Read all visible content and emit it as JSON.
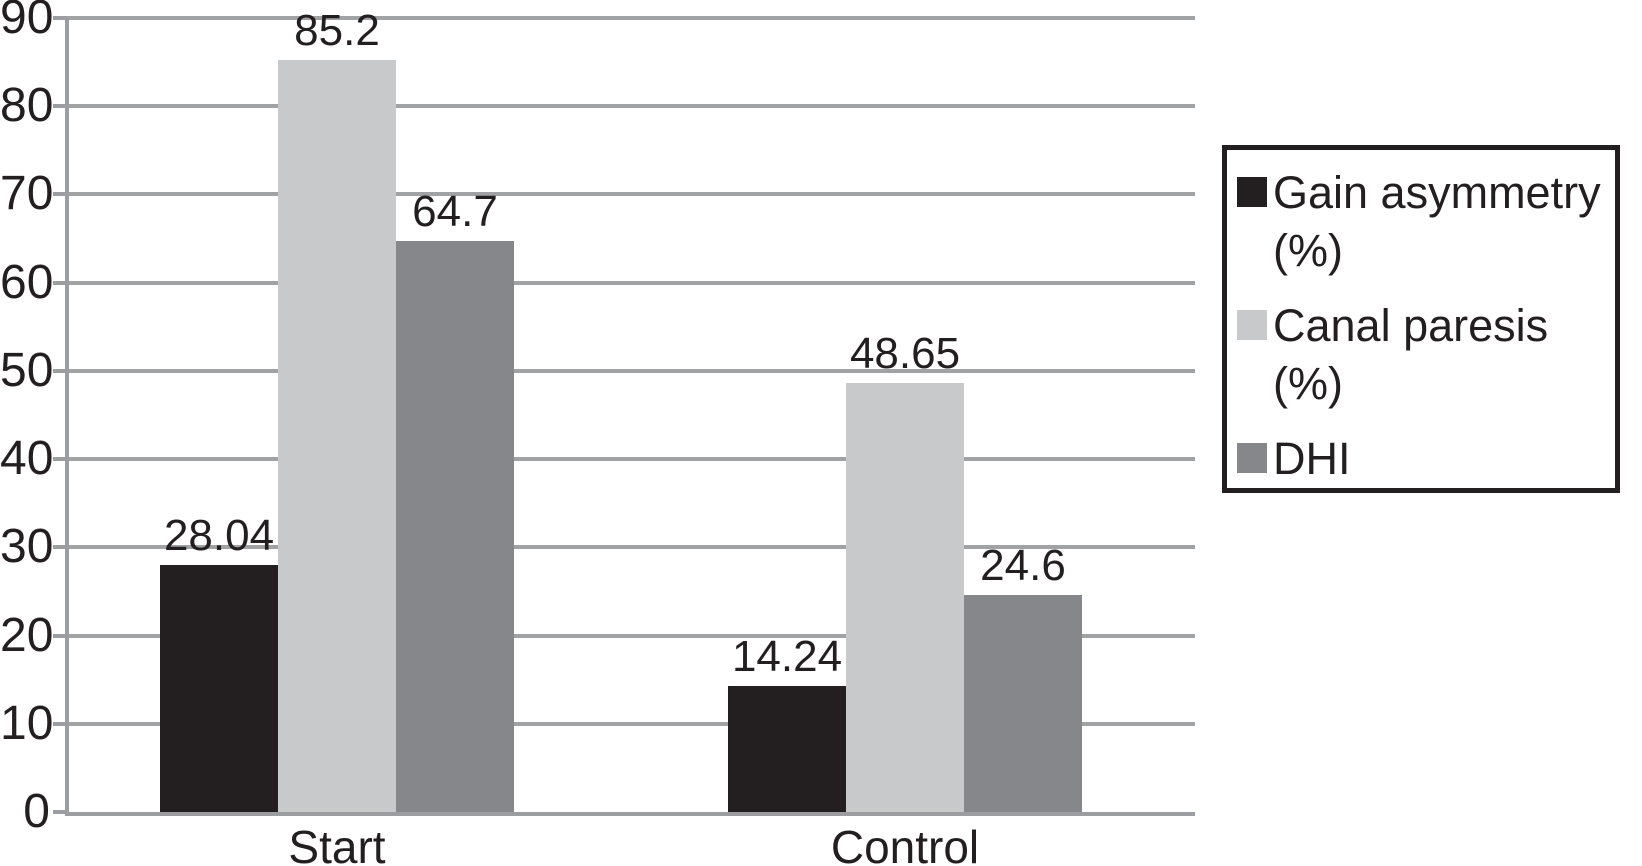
{
  "chart_data": {
    "type": "bar",
    "title": "",
    "xlabel": "",
    "ylabel": "",
    "categories": [
      "Start",
      "Control"
    ],
    "series": [
      {
        "name": "Gain asymmetry (%)",
        "color": "#231f20",
        "values": [
          28.04,
          14.24
        ]
      },
      {
        "name": "Canal paresis (%)",
        "color": "#c8c9cb",
        "values": [
          85.2,
          48.65
        ]
      },
      {
        "name": "DHI",
        "color": "#86878b",
        "values": [
          64.7,
          24.6
        ]
      }
    ],
    "data_labels": [
      [
        "28.04",
        "85.2",
        "64.7"
      ],
      [
        "14.24",
        "48.65",
        "24.6"
      ]
    ],
    "ylim": [
      0,
      90
    ],
    "yticks": [
      0,
      10,
      20,
      30,
      40,
      50,
      60,
      70,
      80,
      90
    ],
    "grid": true,
    "legend_position": "right",
    "colors": {
      "background": "#ffffff",
      "gridline": "#a0a2a4",
      "axis": "#9b9da0",
      "text": "#231f20",
      "legend_border": "#231f20"
    }
  }
}
